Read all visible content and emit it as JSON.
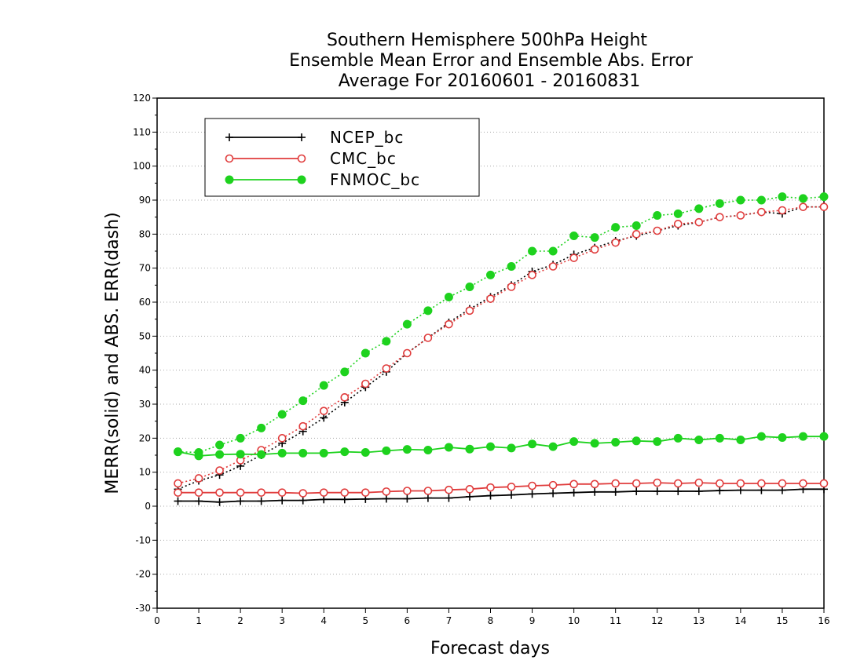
{
  "colors": {
    "NCEP_bc": "#000000",
    "CMC_bc": "#e03c3c",
    "FNMOC_bc": "#1ed21e",
    "grid": "#aaaaaa",
    "axis": "#000000"
  },
  "chart_data": {
    "type": "line",
    "title_lines": [
      "Southern Hemisphere 500hPa Height",
      "Ensemble Mean Error and Ensemble Abs. Error",
      "Average For 20160601 - 20160831"
    ],
    "xlabel": "Forecast days",
    "ylabel": "MERR(solid) and ABS. ERR(dash)",
    "xlim": [
      0,
      16
    ],
    "ylim": [
      -30,
      120
    ],
    "x_ticks": [
      0,
      1,
      2,
      3,
      4,
      5,
      6,
      7,
      8,
      9,
      10,
      11,
      12,
      13,
      14,
      15,
      16
    ],
    "y_ticks": [
      -30,
      -20,
      -10,
      0,
      10,
      20,
      30,
      40,
      50,
      60,
      70,
      80,
      90,
      100,
      110,
      120
    ],
    "grid": "dotted horizontal",
    "legend_position": "top-left",
    "x": [
      0.5,
      1,
      1.5,
      2,
      2.5,
      3,
      3.5,
      4,
      4.5,
      5,
      5.5,
      6,
      6.5,
      7,
      7.5,
      8,
      8.5,
      9,
      9.5,
      10,
      10.5,
      11,
      11.5,
      12,
      12.5,
      13,
      13.5,
      14,
      14.5,
      15,
      15.5,
      16
    ],
    "series": [
      {
        "name": "NCEP_bc",
        "marker": "plus",
        "merr": [
          1.5,
          1.5,
          1.2,
          1.5,
          1.5,
          1.7,
          1.7,
          2,
          2,
          2.1,
          2.2,
          2.2,
          2.4,
          2.4,
          2.8,
          3.1,
          3.3,
          3.6,
          3.8,
          4,
          4.2,
          4.2,
          4.4,
          4.4,
          4.4,
          4.4,
          4.6,
          4.7,
          4.7,
          4.7,
          5,
          5
        ],
        "abs_err": [
          5,
          7.5,
          9.2,
          11.8,
          15,
          18.5,
          22,
          26,
          30.5,
          35,
          39.5,
          45,
          49.5,
          54,
          58,
          61.5,
          65,
          69,
          71,
          74,
          76,
          78,
          79.5,
          81,
          82.5,
          83.5,
          85,
          85.5,
          86.5,
          86,
          88,
          88
        ]
      },
      {
        "name": "CMC_bc",
        "marker": "open-circle",
        "merr": [
          4,
          4,
          4,
          4,
          4,
          4,
          3.8,
          4,
          4,
          4,
          4.3,
          4.5,
          4.5,
          4.8,
          5,
          5.5,
          5.7,
          6,
          6.2,
          6.5,
          6.5,
          6.7,
          6.7,
          6.9,
          6.7,
          6.9,
          6.7,
          6.7,
          6.7,
          6.7,
          6.7,
          6.7
        ],
        "abs_err": [
          6.7,
          8.2,
          10.5,
          13.5,
          16.5,
          20,
          23.5,
          28,
          32,
          36,
          40.5,
          45,
          49.5,
          53.5,
          57.5,
          61,
          64.5,
          68,
          70.5,
          73,
          75.5,
          77.5,
          80,
          81,
          83,
          83.5,
          85,
          85.5,
          86.5,
          87,
          88,
          88
        ]
      },
      {
        "name": "FNMOC_bc",
        "marker": "filled-circle",
        "merr": [
          16,
          14.8,
          15.2,
          15.3,
          15.2,
          15.6,
          15.6,
          15.6,
          16,
          15.8,
          16.3,
          16.7,
          16.5,
          17.3,
          16.8,
          17.5,
          17.1,
          18.3,
          17.5,
          19,
          18.5,
          18.8,
          19.2,
          19,
          20,
          19.5,
          20,
          19.5,
          20.5,
          20.2,
          20.5,
          20.5
        ],
        "abs_err": [
          16,
          15.8,
          18,
          20,
          23,
          27,
          31,
          35.5,
          39.5,
          45,
          48.5,
          53.5,
          57.5,
          61.5,
          64.5,
          68,
          70.5,
          75,
          75,
          79.5,
          79,
          82,
          82.5,
          85.5,
          86,
          87.5,
          89,
          90,
          90,
          91,
          90.5,
          91
        ]
      }
    ]
  }
}
